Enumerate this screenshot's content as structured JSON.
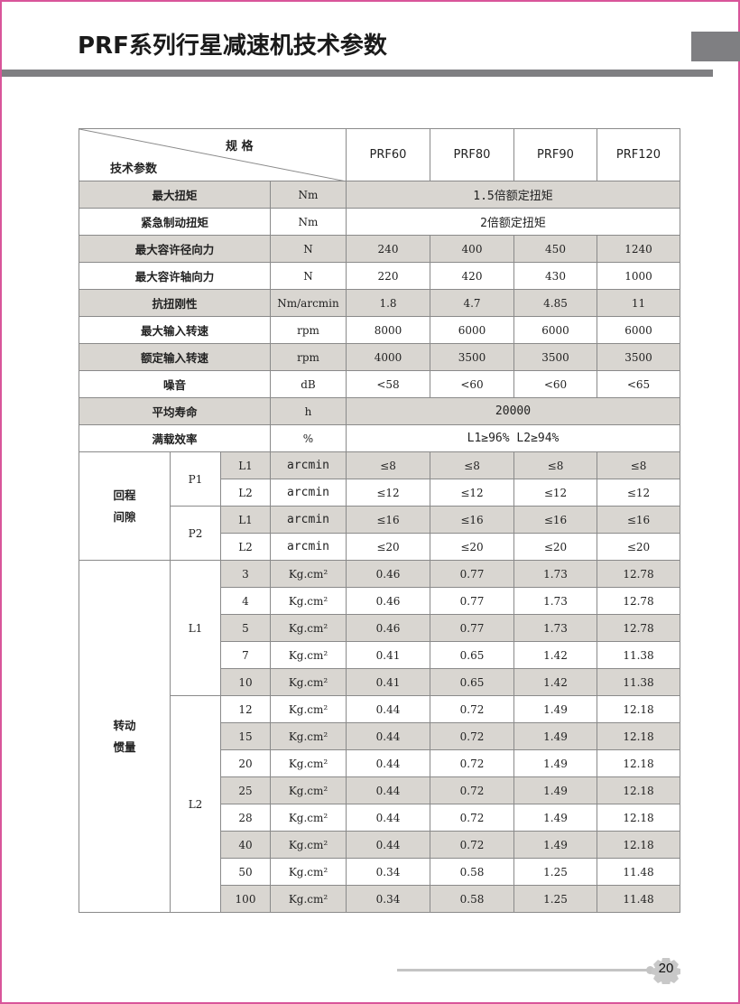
{
  "page": {
    "title": "PRF系列行星减速机技术参数",
    "page_number": "20",
    "border_color": "#d9559a",
    "accent_gray": "#7f7f82",
    "row_shade": "#d9d6d1"
  },
  "header": {
    "corner_top": "规 格",
    "corner_bottom": "技术参数",
    "models": [
      "PRF60",
      "PRF80",
      "PRF90",
      "PRF120"
    ]
  },
  "simple_rows": [
    {
      "name": "最大扭矩",
      "unit": "Nm",
      "span": "1.5倍额定扭矩"
    },
    {
      "name": "紧急制动扭矩",
      "unit": "Nm",
      "span": "2倍额定扭矩"
    },
    {
      "name": "最大容许径向力",
      "unit": "N",
      "values": [
        "240",
        "400",
        "450",
        "1240"
      ]
    },
    {
      "name": "最大容许轴向力",
      "unit": "N",
      "values": [
        "220",
        "420",
        "430",
        "1000"
      ]
    },
    {
      "name": "抗扭刚性",
      "unit": "Nm/arcmin",
      "values": [
        "1.8",
        "4.7",
        "4.85",
        "11"
      ]
    },
    {
      "name": "最大输入转速",
      "unit": "rpm",
      "values": [
        "8000",
        "6000",
        "6000",
        "6000"
      ]
    },
    {
      "name": "额定输入转速",
      "unit": "rpm",
      "values": [
        "4000",
        "3500",
        "3500",
        "3500"
      ]
    },
    {
      "name": "噪音",
      "unit": "dB",
      "values": [
        "<58",
        "<60",
        "<60",
        "<65"
      ]
    },
    {
      "name": "平均寿命",
      "unit": "h",
      "span": "20000"
    },
    {
      "name": "满载效率",
      "unit": "%",
      "span": "L1≥96%   L2≥94%"
    }
  ],
  "backlash": {
    "label": [
      "回程",
      "间隙"
    ],
    "groups": [
      {
        "label": "P1",
        "rows": [
          {
            "stage": "L1",
            "unit": "arcmin",
            "values": [
              "≤8",
              "≤8",
              "≤8",
              "≤8"
            ]
          },
          {
            "stage": "L2",
            "unit": "arcmin",
            "values": [
              "≤12",
              "≤12",
              "≤12",
              "≤12"
            ]
          }
        ]
      },
      {
        "label": "P2",
        "rows": [
          {
            "stage": "L1",
            "unit": "arcmin",
            "values": [
              "≤16",
              "≤16",
              "≤16",
              "≤16"
            ]
          },
          {
            "stage": "L2",
            "unit": "arcmin",
            "values": [
              "≤20",
              "≤20",
              "≤20",
              "≤20"
            ]
          }
        ]
      }
    ]
  },
  "inertia": {
    "label": [
      "转动",
      "惯量"
    ],
    "unit": "Kg.cm²",
    "groups": [
      {
        "label": "L1",
        "rows": [
          {
            "ratio": "3",
            "values": [
              "0.46",
              "0.77",
              "1.73",
              "12.78"
            ]
          },
          {
            "ratio": "4",
            "values": [
              "0.46",
              "0.77",
              "1.73",
              "12.78"
            ]
          },
          {
            "ratio": "5",
            "values": [
              "0.46",
              "0.77",
              "1.73",
              "12.78"
            ]
          },
          {
            "ratio": "7",
            "values": [
              "0.41",
              "0.65",
              "1.42",
              "11.38"
            ]
          },
          {
            "ratio": "10",
            "values": [
              "0.41",
              "0.65",
              "1.42",
              "11.38"
            ]
          }
        ]
      },
      {
        "label": "L2",
        "rows": [
          {
            "ratio": "12",
            "values": [
              "0.44",
              "0.72",
              "1.49",
              "12.18"
            ]
          },
          {
            "ratio": "15",
            "values": [
              "0.44",
              "0.72",
              "1.49",
              "12.18"
            ]
          },
          {
            "ratio": "20",
            "values": [
              "0.44",
              "0.72",
              "1.49",
              "12.18"
            ]
          },
          {
            "ratio": "25",
            "values": [
              "0.44",
              "0.72",
              "1.49",
              "12.18"
            ]
          },
          {
            "ratio": "28",
            "values": [
              "0.44",
              "0.72",
              "1.49",
              "12.18"
            ]
          },
          {
            "ratio": "40",
            "values": [
              "0.44",
              "0.72",
              "1.49",
              "12.18"
            ]
          },
          {
            "ratio": "50",
            "values": [
              "0.34",
              "0.58",
              "1.25",
              "11.48"
            ]
          },
          {
            "ratio": "100",
            "values": [
              "0.34",
              "0.58",
              "1.25",
              "11.48"
            ]
          }
        ]
      }
    ]
  }
}
